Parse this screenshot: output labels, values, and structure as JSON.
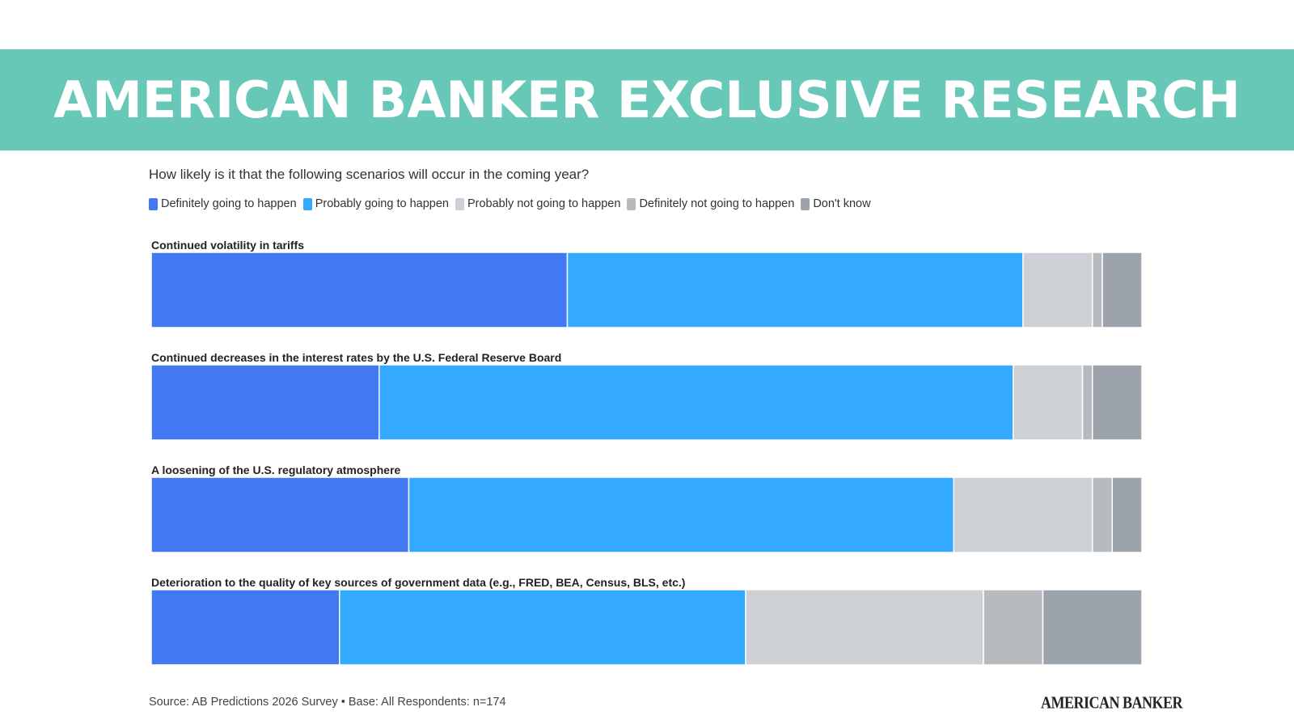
{
  "banner": {
    "title": "AMERICAN BANKER EXCLUSIVE RESEARCH"
  },
  "footer": {
    "source": "Source: AB Predictions 2026 Survey • Base: All Respondents: n=174",
    "logo": "AMERICAN BANKER"
  },
  "chart_data": {
    "type": "bar",
    "orientation": "horizontal",
    "stacked": true,
    "title": "How likely is it that the following scenarios will occur in the coming year?",
    "xlim": [
      0,
      100
    ],
    "legend_position": "top-left",
    "grid": false,
    "categories": [
      "Continued volatility in tariffs",
      "Continued decreases in the interest rates by the U.S. Federal Reserve Board",
      "A loosening of the U.S. regulatory atmosphere",
      "Deterioration to the quality of key sources of government data (e.g., FRED, BEA, Census, BLS, etc.)"
    ],
    "series": [
      {
        "name": "Definitely going to happen",
        "color": "#4279f3",
        "values": [
          42,
          23,
          26,
          19
        ]
      },
      {
        "name": "Probably going to happen",
        "color": "#33aaff",
        "values": [
          46,
          64,
          55,
          41
        ]
      },
      {
        "name": "Probably not going to happen",
        "color": "#cdd1d5",
        "values": [
          7,
          7,
          14,
          24
        ]
      },
      {
        "name": "Definitely not going to happen",
        "color": "#b6bbbf",
        "values": [
          1,
          1,
          2,
          6
        ]
      },
      {
        "name": "Don't know",
        "color": "#9ca3aa",
        "values": [
          4,
          5,
          3,
          10
        ]
      }
    ]
  }
}
